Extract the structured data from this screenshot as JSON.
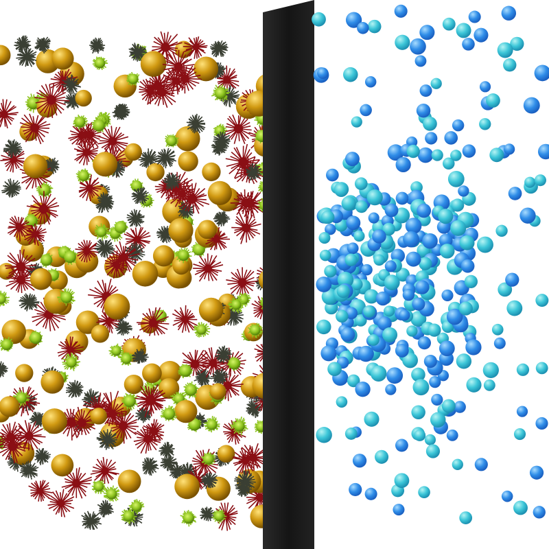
{
  "colors": {
    "background": "#ffffff",
    "filter_panel": "#1c1c1c",
    "gold_particle": "#d19a12",
    "green_particle": "#8cc21e",
    "red_spiky_particle": "#8a0f14",
    "dark_spiky_particle": "#3a3f33",
    "blue_particle": "#2f8de8",
    "cyan_particle": "#3cc6d8"
  },
  "icons": {
    "filter": "filter-panel-icon",
    "contaminant": "particle-icon",
    "clean": "clean-particle-icon"
  }
}
